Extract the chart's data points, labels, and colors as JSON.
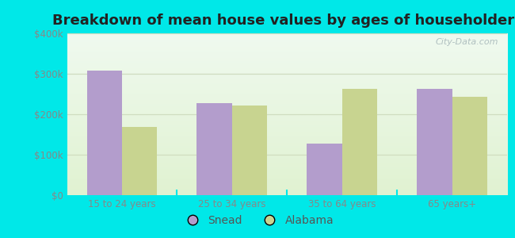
{
  "title": "Breakdown of mean house values by ages of householders",
  "categories": [
    "15 to 24 years",
    "25 to 34 years",
    "35 to 64 years",
    "65 years+"
  ],
  "snead_values": [
    308000,
    228000,
    128000,
    262000
  ],
  "alabama_values": [
    168000,
    222000,
    262000,
    243000
  ],
  "snead_color": "#b39dcc",
  "alabama_color": "#c8d490",
  "background_color": "#00e8e8",
  "ylim": [
    0,
    400000
  ],
  "yticks": [
    0,
    100000,
    200000,
    300000,
    400000
  ],
  "ytick_labels": [
    "$0",
    "$100k",
    "$200k",
    "$300k",
    "$400k"
  ],
  "title_fontsize": 13,
  "legend_labels": [
    "Snead",
    "Alabama"
  ],
  "bar_width": 0.32,
  "watermark": "City-Data.com",
  "grid_color": "#d0ddc0",
  "tick_color": "#888888"
}
